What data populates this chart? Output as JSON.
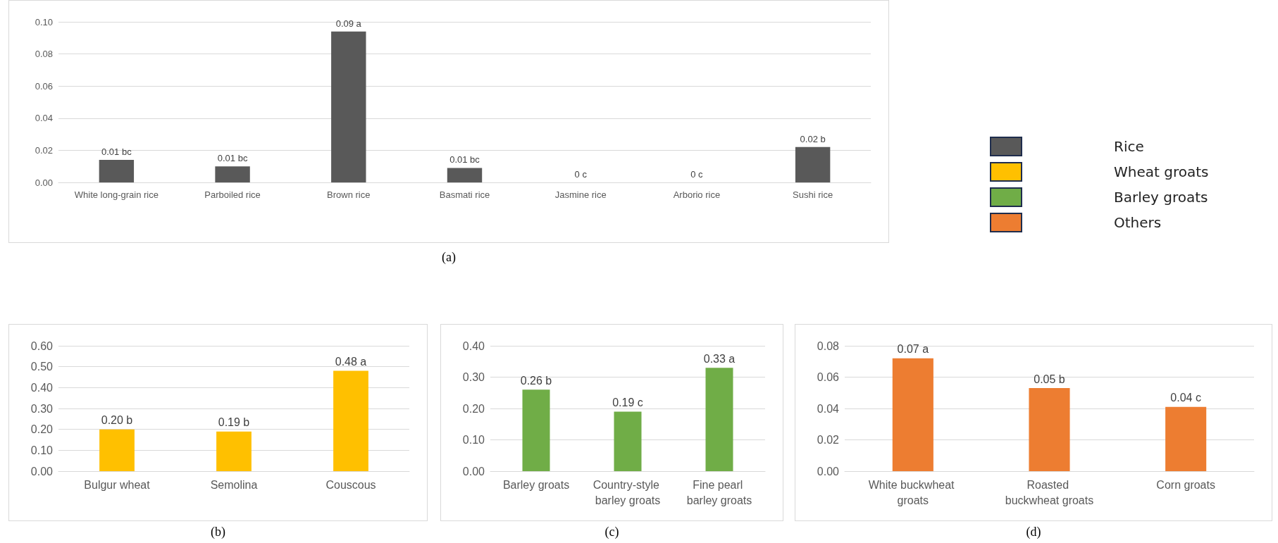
{
  "chart_data": [
    {
      "type": "bar",
      "categories": [
        "White long-grain rice",
        "Parboiled rice",
        "Brown rice",
        "Basmati rice",
        "Jasmine rice",
        "Arborio rice",
        "Sushi rice"
      ],
      "series": [
        {
          "name": "Rice",
          "color": "#595959",
          "values": [
            0.014,
            0.01,
            0.094,
            0.009,
            0,
            0,
            0.022
          ],
          "value_labels": [
            "0.01 bc",
            "0.01 bc",
            "0.09 a",
            "0.01 bc",
            "0 c",
            "0 c",
            "0.02 b"
          ]
        }
      ],
      "ylim": [
        0,
        0.1
      ],
      "yticks": [
        {
          "value": 0,
          "label": "0.00"
        },
        {
          "value": 0.02,
          "label": "0.02"
        },
        {
          "value": 0.04,
          "label": "0.04"
        },
        {
          "value": 0.06,
          "label": "0.06"
        },
        {
          "value": 0.08,
          "label": "0.08"
        },
        {
          "value": 0.1,
          "label": "0.10"
        }
      ],
      "grid": "y",
      "legend": "right",
      "annotations": [
        "(a)"
      ]
    },
    {
      "type": "bar",
      "categories": [
        "Bulgur wheat",
        "Semolina",
        "Couscous"
      ],
      "series": [
        {
          "name": "Wheat groats",
          "color": "#ffc000",
          "values": [
            0.2,
            0.19,
            0.48
          ],
          "value_labels": [
            "0.20 b",
            "0.19 b",
            "0.48 a"
          ]
        }
      ],
      "ylim": [
        0,
        0.6
      ],
      "yticks": [
        {
          "value": 0,
          "label": "0.00"
        },
        {
          "value": 0.1,
          "label": "0.10"
        },
        {
          "value": 0.2,
          "label": "0.20"
        },
        {
          "value": 0.3,
          "label": "0.30"
        },
        {
          "value": 0.4,
          "label": "0.40"
        },
        {
          "value": 0.5,
          "label": "0.50"
        },
        {
          "value": 0.6,
          "label": "0.60"
        }
      ],
      "grid": "y",
      "annotations": [
        "(b)"
      ]
    },
    {
      "type": "bar",
      "categories": [
        "Barley groats",
        "Country-style barley groats",
        "Fine pearl barley groats"
      ],
      "series": [
        {
          "name": "Barley groats",
          "color": "#70ad47",
          "values": [
            0.26,
            0.19,
            0.33
          ],
          "value_labels": [
            "0.26 b",
            "0.19 c",
            "0.33 a"
          ]
        }
      ],
      "ylim": [
        0,
        0.4
      ],
      "yticks": [
        {
          "value": 0,
          "label": "0.00"
        },
        {
          "value": 0.1,
          "label": "0.10"
        },
        {
          "value": 0.2,
          "label": "0.20"
        },
        {
          "value": 0.3,
          "label": "0.30"
        },
        {
          "value": 0.4,
          "label": "0.40"
        }
      ],
      "grid": "y",
      "annotations": [
        "(c)"
      ]
    },
    {
      "type": "bar",
      "categories": [
        "White buckwheat groats",
        "Roasted buckwheat groats",
        "Corn groats"
      ],
      "series": [
        {
          "name": "Others",
          "color": "#ed7d31",
          "values": [
            0.072,
            0.053,
            0.041
          ],
          "value_labels": [
            "0.07 a",
            "0.05 b",
            "0.04 c"
          ]
        }
      ],
      "ylim": [
        0,
        0.08
      ],
      "yticks": [
        {
          "value": 0,
          "label": "0.00"
        },
        {
          "value": 0.02,
          "label": "0.02"
        },
        {
          "value": 0.04,
          "label": "0.04"
        },
        {
          "value": 0.06,
          "label": "0.06"
        },
        {
          "value": 0.08,
          "label": "0.08"
        }
      ],
      "grid": "y",
      "annotations": [
        "(d)"
      ]
    }
  ]
}
